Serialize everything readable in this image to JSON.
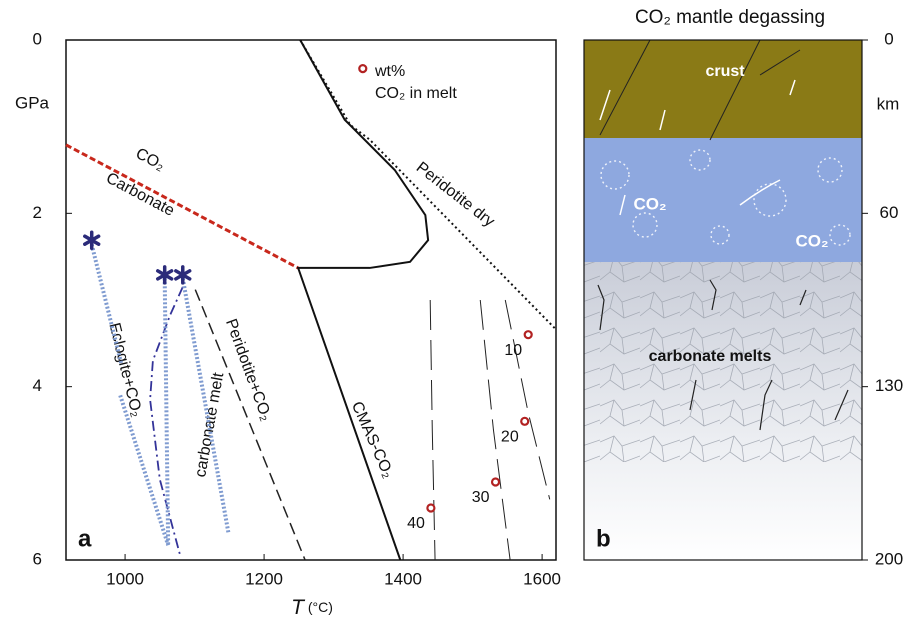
{
  "chart_data": [
    {
      "type": "phase-diagram",
      "panel_label": "a",
      "x_label": "T",
      "x_unit": "(°C)",
      "y_label": "GPa",
      "xlim": [
        915,
        1620
      ],
      "ylim": [
        0,
        6
      ],
      "y_inverted": true,
      "xticks": [
        1000,
        1200,
        1400,
        1600
      ],
      "yticks": [
        0,
        2,
        4,
        6
      ],
      "legend": [
        "wt%",
        "CO₂ in melt"
      ],
      "annotations": [
        "CO₂",
        "Carbonate",
        "Peridotite dry",
        "Eclogite+CO₂",
        "carbonate melt",
        "Peridotite+CO₂",
        "CMAS-CO₂"
      ],
      "series": [
        {
          "color": "#c8281c",
          "dash": "dashed-fine",
          "width": 3,
          "x": [
            915,
            1249
          ],
          "values": [
            1.21,
            2.63
          ]
        },
        {
          "color": "#111111",
          "dash": "solid",
          "width": 2,
          "x": [
            1252,
            1316,
            1388,
            1432,
            1436,
            1410,
            1352,
            1249,
            1396
          ],
          "values": [
            0,
            0.92,
            1.5,
            2.02,
            2.31,
            2.56,
            2.63,
            2.63,
            6.0
          ]
        },
        {
          "color": "#111111",
          "dash": "dotted",
          "width": 2,
          "x": [
            1252,
            1324,
            1352,
            1620
          ],
          "values": [
            0,
            0.98,
            1.15,
            3.34
          ]
        },
        {
          "color": "#222222",
          "dash": "dashed",
          "width": 1.5,
          "x": [
            1101,
            1259
          ],
          "values": [
            2.88,
            6.0
          ]
        },
        {
          "color": "#333399",
          "dash": "dashdot",
          "width": 1.8,
          "x": [
            1083,
            1065,
            1040,
            1036,
            1050,
            1079
          ],
          "values": [
            2.85,
            3.17,
            3.7,
            4.15,
            5.07,
            5.94
          ]
        },
        {
          "color": "#7f9bd0",
          "dash": "thick-dotted",
          "width": 4,
          "x": [
            952,
            995,
            null,
            993,
            1062
          ],
          "values": [
            2.36,
            3.75,
            null,
            4.1,
            5.83
          ]
        },
        {
          "color": "#7f9bd0",
          "dash": "thick-dotted",
          "width": 4,
          "x": [
            1057,
            1062
          ],
          "values": [
            2.75,
            5.83
          ]
        },
        {
          "color": "#7f9bd0",
          "dash": "thick-dotted",
          "width": 4,
          "x": [
            1083,
            1149
          ],
          "values": [
            2.75,
            5.7
          ]
        },
        {
          "color": "#222222",
          "dash": "longdash",
          "width": 1,
          "x": [
            1439,
            1442,
            1446
          ],
          "values": [
            3.0,
            4.5,
            6.0
          ]
        },
        {
          "color": "#222222",
          "dash": "longdash",
          "width": 1,
          "x": [
            1511,
            1530,
            1554
          ],
          "values": [
            3.0,
            4.5,
            6.0
          ]
        },
        {
          "color": "#222222",
          "dash": "longdash",
          "width": 1,
          "x": [
            1547,
            1580,
            1611
          ],
          "values": [
            3.0,
            4.3,
            5.3
          ]
        },
        {
          "marker": "asterisk",
          "color": "#2b2b7a",
          "x": [
            952,
            1057,
            1083
          ],
          "values": [
            2.31,
            2.71,
            2.71
          ]
        },
        {
          "marker": "circle",
          "color": "#b22222",
          "x": [
            1580,
            1575,
            1533,
            1440,
            1342
          ],
          "values": [
            3.4,
            4.4,
            5.1,
            5.4,
            0.33
          ],
          "point_labels": [
            "10",
            "20",
            "30",
            "40",
            null
          ]
        }
      ]
    },
    {
      "type": "illustration",
      "panel_label": "b",
      "title": "CO₂ mantle degassing",
      "y_label": "km",
      "yticks": [
        0,
        60,
        130,
        200
      ],
      "layer_labels": [
        "crust",
        "CO₂",
        "CO₂",
        "carbonate melts"
      ]
    }
  ]
}
